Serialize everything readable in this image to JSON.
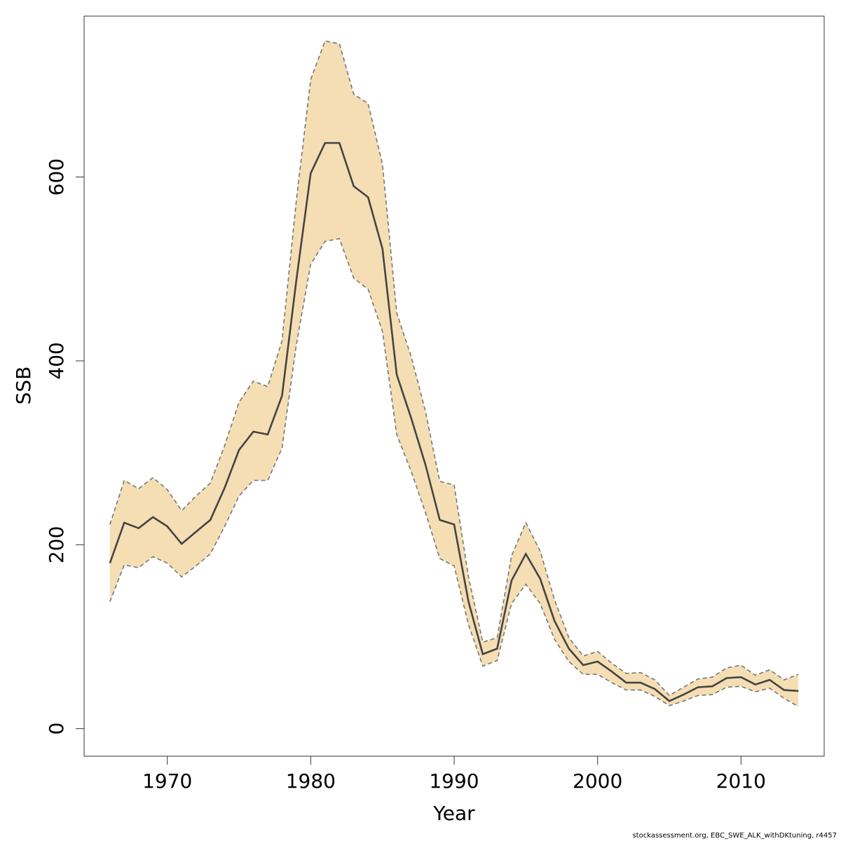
{
  "chart_data": {
    "type": "area",
    "xlabel": "Year",
    "ylabel": "SSB",
    "xlim": [
      1964.2,
      2015.8
    ],
    "ylim": [
      -30,
      775
    ],
    "x_ticks": [
      1970,
      1980,
      1990,
      2000,
      2010
    ],
    "y_ticks": [
      0,
      200,
      400,
      600
    ],
    "grid": false,
    "colors": {
      "band_fill": "#f5deb3",
      "estimate_line": "#444444",
      "bound_line": "#777777"
    },
    "x": [
      1966,
      1967,
      1968,
      1969,
      1970,
      1971,
      1972,
      1973,
      1974,
      1975,
      1976,
      1977,
      1978,
      1979,
      1980,
      1981,
      1982,
      1983,
      1984,
      1985,
      1986,
      1987,
      1988,
      1989,
      1990,
      1991,
      1992,
      1993,
      1994,
      1995,
      1996,
      1997,
      1998,
      1999,
      2000,
      2001,
      2002,
      2003,
      2004,
      2005,
      2006,
      2007,
      2008,
      2009,
      2010,
      2011,
      2012,
      2013,
      2014
    ],
    "series": [
      {
        "role": "estimate",
        "values": [
          180,
          224,
          218,
          230,
          220,
          201,
          214,
          227,
          262,
          303,
          323,
          320,
          362,
          488,
          604,
          637,
          637,
          590,
          578,
          522,
          385,
          338,
          287,
          227,
          222,
          138,
          81,
          87,
          161,
          190,
          163,
          117,
          87,
          69,
          73,
          62,
          50,
          50,
          43,
          30,
          37,
          45,
          46,
          55,
          56,
          48,
          53,
          42,
          41
        ]
      },
      {
        "role": "upper",
        "values": [
          222,
          270,
          261,
          273,
          260,
          237,
          253,
          267,
          308,
          355,
          378,
          372,
          422,
          575,
          706,
          748,
          745,
          690,
          680,
          614,
          452,
          405,
          345,
          269,
          265,
          165,
          94,
          99,
          188,
          224,
          193,
          140,
          99,
          79,
          84,
          71,
          60,
          61,
          53,
          36,
          45,
          54,
          56,
          66,
          69,
          58,
          64,
          53,
          59
        ]
      },
      {
        "role": "lower",
        "values": [
          138,
          178,
          175,
          187,
          180,
          165,
          177,
          190,
          220,
          253,
          270,
          270,
          305,
          418,
          505,
          530,
          533,
          490,
          478,
          432,
          320,
          280,
          235,
          185,
          177,
          113,
          68,
          74,
          136,
          157,
          136,
          97,
          73,
          59,
          59,
          50,
          42,
          42,
          35,
          25,
          30,
          36,
          37,
          45,
          46,
          40,
          44,
          33,
          24
        ]
      }
    ]
  },
  "footer": "stockassessment.org, EBC_SWE_ALK_withDKtuning, r4457"
}
